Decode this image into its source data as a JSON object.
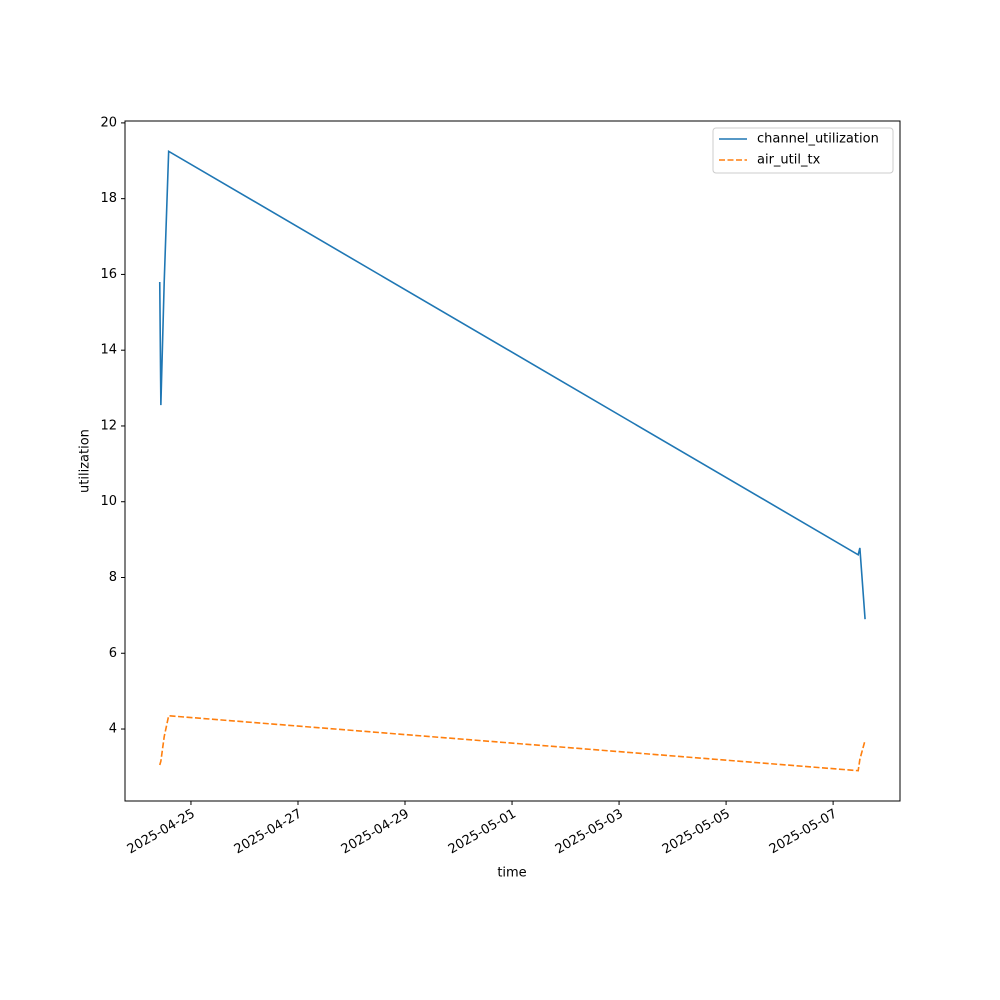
{
  "chart_data": {
    "type": "line",
    "x_label": "time",
    "y_label": "utilization",
    "x": [
      "2025-04-24T10:00",
      "2025-04-24T10:30",
      "2025-04-24T12:00",
      "2025-04-24T14:00",
      "2025-05-07T11:15",
      "2025-05-07T12:00",
      "2025-05-07T14:20"
    ],
    "series": [
      {
        "name": "channel_utilization",
        "color": "#1f77b4",
        "dash": "solid",
        "values": [
          15.8,
          12.55,
          15.8,
          19.25,
          8.6,
          8.78,
          6.9
        ]
      },
      {
        "name": "air_util_tx",
        "color": "#ff7f0e",
        "dash": "dashed",
        "values": [
          3.05,
          3.15,
          3.8,
          4.35,
          2.9,
          3.2,
          3.7
        ]
      }
    ],
    "xlim": [
      "2025-04-23T18:25",
      "2025-05-08T06:00"
    ],
    "xticks": [
      "2025-04-25",
      "2025-04-27",
      "2025-04-29",
      "2025-05-01",
      "2025-05-03",
      "2025-05-05",
      "2025-05-07"
    ],
    "ylim": [
      2.1,
      20.05
    ],
    "yticks": [
      4,
      6,
      8,
      10,
      12,
      14,
      16,
      18,
      20
    ],
    "grid": false,
    "legend": "upper right"
  }
}
